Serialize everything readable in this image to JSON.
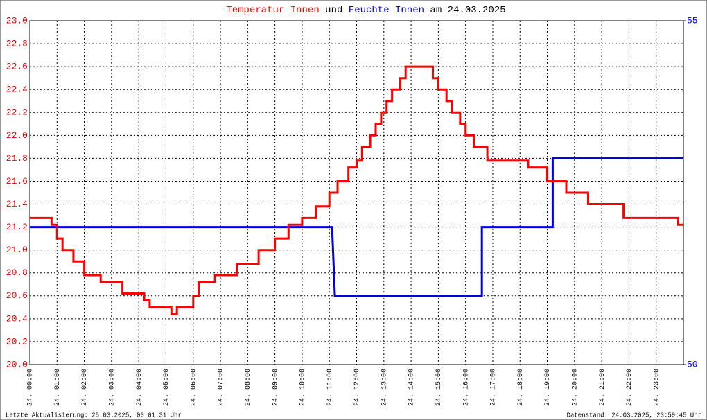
{
  "chart_data": {
    "type": "line",
    "title_parts": [
      "und",
      "am 24.03.2025"
    ],
    "xlim": [
      0,
      24
    ],
    "xticks": [
      {
        "value": 0,
        "label": "24. 00:00"
      },
      {
        "value": 1,
        "label": "24. 01:00"
      },
      {
        "value": 2,
        "label": "24. 02:00"
      },
      {
        "value": 3,
        "label": "24. 03:00"
      },
      {
        "value": 4,
        "label": "24. 04:00"
      },
      {
        "value": 5,
        "label": "24. 05:00"
      },
      {
        "value": 6,
        "label": "24. 06:00"
      },
      {
        "value": 7,
        "label": "24. 07:00"
      },
      {
        "value": 8,
        "label": "24. 08:00"
      },
      {
        "value": 9,
        "label": "24. 09:00"
      },
      {
        "value": 10,
        "label": "24. 10:00"
      },
      {
        "value": 11,
        "label": "24. 11:00"
      },
      {
        "value": 12,
        "label": "24. 12:00"
      },
      {
        "value": 13,
        "label": "24. 13:00"
      },
      {
        "value": 14,
        "label": "24. 14:00"
      },
      {
        "value": 15,
        "label": "24. 15:00"
      },
      {
        "value": 16,
        "label": "24. 16:00"
      },
      {
        "value": 17,
        "label": "24. 17:00"
      },
      {
        "value": 18,
        "label": "24. 18:00"
      },
      {
        "value": 19,
        "label": "24. 19:00"
      },
      {
        "value": 20,
        "label": "24. 20:00"
      },
      {
        "value": 21,
        "label": "24. 21:00"
      },
      {
        "value": 22,
        "label": "24. 22:00"
      },
      {
        "value": 23,
        "label": "24. 23:00"
      }
    ],
    "ylim": [
      20,
      23
    ],
    "yticks": [
      {
        "value": 20,
        "label": "20.0"
      },
      20.2,
      20.4,
      20.6,
      20.8,
      {
        "value": 21,
        "label": "21.0"
      },
      21.2,
      21.4,
      21.6,
      21.8,
      {
        "value": 22,
        "label": "22.0"
      },
      22.2,
      22.4,
      22.6,
      22.8,
      {
        "value": 23,
        "label": "23.0"
      }
    ],
    "y2lim": [
      50,
      55
    ],
    "y2ticks": [
      50,
      55
    ],
    "grid": true,
    "series": [
      {
        "name": "Temperatur Innen",
        "color": "#ff0000",
        "x": [
          0,
          0.8,
          0.8,
          1.0,
          1.0,
          1.2,
          1.2,
          1.6,
          1.6,
          2.0,
          2.0,
          2.6,
          2.6,
          3.4,
          3.4,
          4.2,
          4.2,
          4.4,
          4.4,
          5.2,
          5.2,
          5.4,
          5.4,
          6.0,
          6.0,
          6.2,
          6.2,
          6.8,
          6.8,
          7.6,
          7.6,
          8.4,
          8.4,
          9.0,
          9.0,
          9.5,
          9.5,
          10.0,
          10.0,
          10.5,
          10.5,
          11.0,
          11.0,
          11.3,
          11.3,
          11.7,
          11.7,
          12.0,
          12.0,
          12.2,
          12.2,
          12.5,
          12.5,
          12.7,
          12.7,
          12.9,
          12.9,
          13.1,
          13.1,
          13.3,
          13.3,
          13.6,
          13.6,
          13.8,
          13.8,
          14.8,
          14.8,
          15.0,
          15.0,
          15.3,
          15.3,
          15.5,
          15.5,
          15.8,
          15.8,
          16.0,
          16.0,
          16.3,
          16.3,
          16.8,
          16.8,
          18.3,
          18.3,
          19.0,
          19.0,
          19.7,
          19.7,
          20.5,
          20.5,
          21.8,
          21.8,
          23.8,
          23.8,
          24
        ],
        "values": [
          21.28,
          21.28,
          21.22,
          21.22,
          21.1,
          21.1,
          21.0,
          21.0,
          20.9,
          20.9,
          20.78,
          20.78,
          20.72,
          20.72,
          20.62,
          20.62,
          20.56,
          20.56,
          20.5,
          20.5,
          20.44,
          20.44,
          20.5,
          20.5,
          20.6,
          20.6,
          20.72,
          20.72,
          20.78,
          20.78,
          20.88,
          20.88,
          21.0,
          21.0,
          21.1,
          21.1,
          21.22,
          21.22,
          21.28,
          21.28,
          21.38,
          21.38,
          21.5,
          21.5,
          21.6,
          21.6,
          21.72,
          21.72,
          21.78,
          21.78,
          21.9,
          21.9,
          22.0,
          22.0,
          22.1,
          22.1,
          22.2,
          22.2,
          22.3,
          22.3,
          22.4,
          22.4,
          22.5,
          22.5,
          22.6,
          22.6,
          22.5,
          22.5,
          22.4,
          22.4,
          22.3,
          22.3,
          22.2,
          22.2,
          22.1,
          22.1,
          22.0,
          22.0,
          21.9,
          21.9,
          21.78,
          21.78,
          21.72,
          21.72,
          21.6,
          21.6,
          21.5,
          21.5,
          21.4,
          21.4,
          21.28,
          21.28,
          21.22,
          21.22
        ]
      },
      {
        "name": "Feuchte Innen",
        "color": "#0000dd",
        "axis": "y2",
        "x": [
          0,
          11.1,
          11.2,
          16.6,
          16.6,
          19.2,
          19.2,
          24
        ],
        "values": [
          52,
          52,
          51,
          51,
          52,
          52,
          53,
          53
        ]
      }
    ],
    "footer_left": "Letzte Aktualisierung: 25.03.2025, 00:01:31 Uhr",
    "footer_right": "Datenstand: 24.03.2025, 23:59:45 Uhr"
  }
}
